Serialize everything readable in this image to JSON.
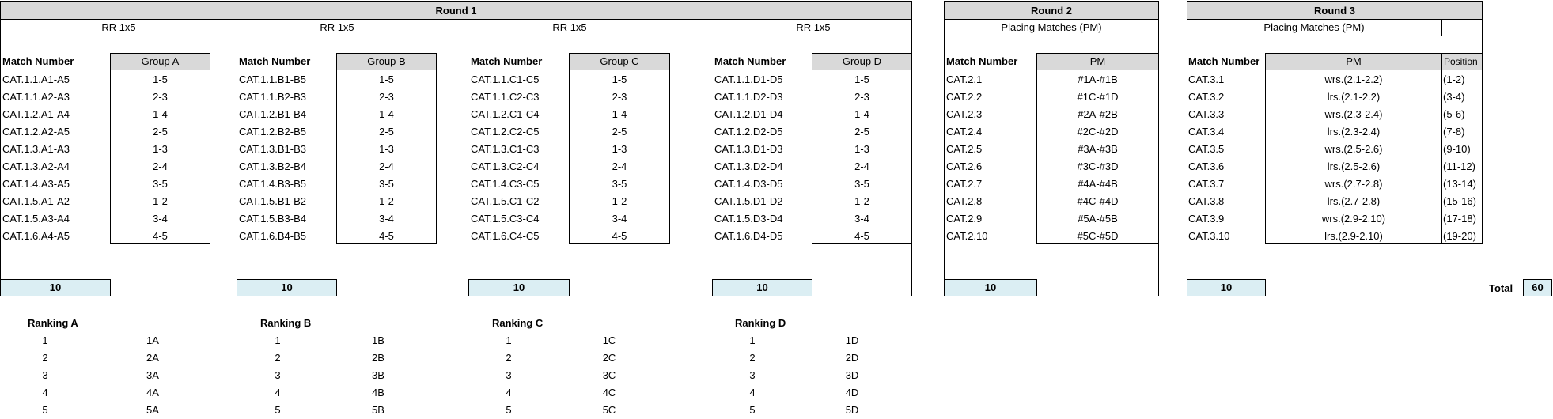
{
  "round1": {
    "title": "Round 1",
    "groups": [
      {
        "subtitle": "RR 1x5",
        "match_header": "Match Number",
        "group_header": "Group A",
        "count": "10",
        "rows": [
          [
            "CAT.1.1.A1-A5",
            "1-5"
          ],
          [
            "CAT.1.1.A2-A3",
            "2-3"
          ],
          [
            "CAT.1.2.A1-A4",
            "1-4"
          ],
          [
            "CAT.1.2.A2-A5",
            "2-5"
          ],
          [
            "CAT.1.3.A1-A3",
            "1-3"
          ],
          [
            "CAT.1.3.A2-A4",
            "2-4"
          ],
          [
            "CAT.1.4.A3-A5",
            "3-5"
          ],
          [
            "CAT.1.5.A1-A2",
            "1-2"
          ],
          [
            "CAT.1.5.A3-A4",
            "3-4"
          ],
          [
            "CAT.1.6.A4-A5",
            "4-5"
          ]
        ]
      },
      {
        "subtitle": "RR 1x5",
        "match_header": "Match Number",
        "group_header": "Group B",
        "count": "10",
        "rows": [
          [
            "CAT.1.1.B1-B5",
            "1-5"
          ],
          [
            "CAT.1.1.B2-B3",
            "2-3"
          ],
          [
            "CAT.1.2.B1-B4",
            "1-4"
          ],
          [
            "CAT.1.2.B2-B5",
            "2-5"
          ],
          [
            "CAT.1.3.B1-B3",
            "1-3"
          ],
          [
            "CAT.1.3.B2-B4",
            "2-4"
          ],
          [
            "CAT.1.4.B3-B5",
            "3-5"
          ],
          [
            "CAT.1.5.B1-B2",
            "1-2"
          ],
          [
            "CAT.1.5.B3-B4",
            "3-4"
          ],
          [
            "CAT.1.6.B4-B5",
            "4-5"
          ]
        ]
      },
      {
        "subtitle": "RR 1x5",
        "match_header": "Match Number",
        "group_header": "Group C",
        "count": "10",
        "rows": [
          [
            "CAT.1.1.C1-C5",
            "1-5"
          ],
          [
            "CAT.1.1.C2-C3",
            "2-3"
          ],
          [
            "CAT.1.2.C1-C4",
            "1-4"
          ],
          [
            "CAT.1.2.C2-C5",
            "2-5"
          ],
          [
            "CAT.1.3.C1-C3",
            "1-3"
          ],
          [
            "CAT.1.3.C2-C4",
            "2-4"
          ],
          [
            "CAT.1.4.C3-C5",
            "3-5"
          ],
          [
            "CAT.1.5.C1-C2",
            "1-2"
          ],
          [
            "CAT.1.5.C3-C4",
            "3-4"
          ],
          [
            "CAT.1.6.C4-C5",
            "4-5"
          ]
        ]
      },
      {
        "subtitle": "RR 1x5",
        "match_header": "Match Number",
        "group_header": "Group D",
        "count": "10",
        "rows": [
          [
            "CAT.1.1.D1-D5",
            "1-5"
          ],
          [
            "CAT.1.1.D2-D3",
            "2-3"
          ],
          [
            "CAT.1.2.D1-D4",
            "1-4"
          ],
          [
            "CAT.1.2.D2-D5",
            "2-5"
          ],
          [
            "CAT.1.3.D1-D3",
            "1-3"
          ],
          [
            "CAT.1.3.D2-D4",
            "2-4"
          ],
          [
            "CAT.1.4.D3-D5",
            "3-5"
          ],
          [
            "CAT.1.5.D1-D2",
            "1-2"
          ],
          [
            "CAT.1.5.D3-D4",
            "3-4"
          ],
          [
            "CAT.1.6.D4-D5",
            "4-5"
          ]
        ]
      }
    ]
  },
  "round2": {
    "title": "Round 2",
    "subtitle": "Placing Matches (PM)",
    "match_header": "Match Number",
    "pm_header": "PM",
    "count": "10",
    "rows": [
      [
        "CAT.2.1",
        "#1A-#1B"
      ],
      [
        "CAT.2.2",
        "#1C-#1D"
      ],
      [
        "CAT.2.3",
        "#2A-#2B"
      ],
      [
        "CAT.2.4",
        "#2C-#2D"
      ],
      [
        "CAT.2.5",
        "#3A-#3B"
      ],
      [
        "CAT.2.6",
        "#3C-#3D"
      ],
      [
        "CAT.2.7",
        "#4A-#4B"
      ],
      [
        "CAT.2.8",
        "#4C-#4D"
      ],
      [
        "CAT.2.9",
        "#5A-#5B"
      ],
      [
        "CAT.2.10",
        "#5C-#5D"
      ]
    ]
  },
  "round3": {
    "title": "Round 3",
    "subtitle": "Placing Matches (PM)",
    "match_header": "Match Number",
    "pm_header": "PM",
    "position_header": "Position",
    "count": "10",
    "rows": [
      [
        "CAT.3.1",
        "wrs.(2.1-2.2)",
        "(1-2)"
      ],
      [
        "CAT.3.2",
        "lrs.(2.1-2.2)",
        "(3-4)"
      ],
      [
        "CAT.3.3",
        "wrs.(2.3-2.4)",
        "(5-6)"
      ],
      [
        "CAT.3.4",
        "lrs.(2.3-2.4)",
        "(7-8)"
      ],
      [
        "CAT.3.5",
        "wrs.(2.5-2.6)",
        "(9-10)"
      ],
      [
        "CAT.3.6",
        "lrs.(2.5-2.6)",
        "(11-12)"
      ],
      [
        "CAT.3.7",
        "wrs.(2.7-2.8)",
        "(13-14)"
      ],
      [
        "CAT.3.8",
        "lrs.(2.7-2.8)",
        "(15-16)"
      ],
      [
        "CAT.3.9",
        "wrs.(2.9-2.10)",
        "(17-18)"
      ],
      [
        "CAT.3.10",
        "lrs.(2.9-2.10)",
        "(19-20)"
      ]
    ]
  },
  "total": {
    "label": "Total",
    "value": "60"
  },
  "rankings": [
    {
      "title": "Ranking A",
      "rows": [
        [
          "1",
          "1A"
        ],
        [
          "2",
          "2A"
        ],
        [
          "3",
          "3A"
        ],
        [
          "4",
          "4A"
        ],
        [
          "5",
          "5A"
        ]
      ]
    },
    {
      "title": "Ranking B",
      "rows": [
        [
          "1",
          "1B"
        ],
        [
          "2",
          "2B"
        ],
        [
          "3",
          "3B"
        ],
        [
          "4",
          "4B"
        ],
        [
          "5",
          "5B"
        ]
      ]
    },
    {
      "title": "Ranking C",
      "rows": [
        [
          "1",
          "1C"
        ],
        [
          "2",
          "2C"
        ],
        [
          "3",
          "3C"
        ],
        [
          "4",
          "4C"
        ],
        [
          "5",
          "5C"
        ]
      ]
    },
    {
      "title": "Ranking D",
      "rows": [
        [
          "1",
          "1D"
        ],
        [
          "2",
          "2D"
        ],
        [
          "3",
          "3D"
        ],
        [
          "4",
          "4D"
        ],
        [
          "5",
          "5D"
        ]
      ]
    }
  ]
}
